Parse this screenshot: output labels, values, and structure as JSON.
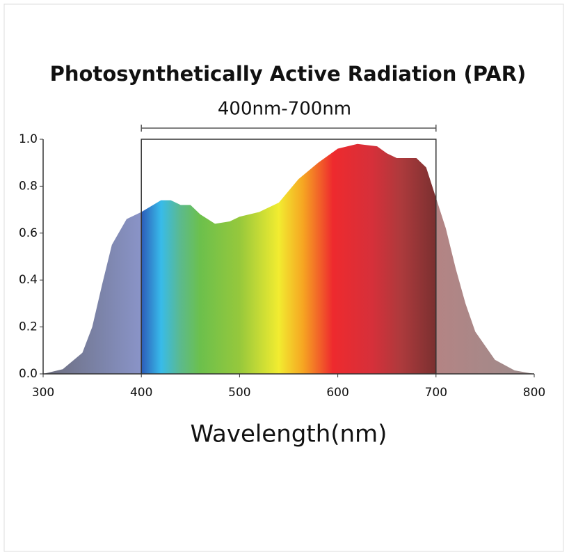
{
  "chart_data": {
    "type": "area",
    "title": "Photosynthetically Active Radiation (PAR)",
    "xlabel": "Wavelength(nm)",
    "band": {
      "label": "400nm-700nm",
      "start": 400,
      "end": 700
    },
    "x": [
      300,
      320,
      340,
      350,
      360,
      370,
      385,
      400,
      420,
      430,
      440,
      450,
      460,
      475,
      490,
      500,
      520,
      540,
      550,
      560,
      580,
      600,
      620,
      640,
      650,
      660,
      680,
      690,
      700,
      710,
      720,
      730,
      740,
      760,
      780,
      800
    ],
    "y": [
      0.0,
      0.02,
      0.09,
      0.2,
      0.38,
      0.55,
      0.66,
      0.69,
      0.74,
      0.74,
      0.72,
      0.72,
      0.68,
      0.64,
      0.65,
      0.67,
      0.69,
      0.73,
      0.78,
      0.83,
      0.9,
      0.96,
      0.98,
      0.97,
      0.94,
      0.92,
      0.92,
      0.88,
      0.75,
      0.62,
      0.45,
      0.3,
      0.18,
      0.06,
      0.015,
      0.0
    ],
    "xlim": [
      300,
      800
    ],
    "xticks": [
      300,
      400,
      500,
      600,
      700,
      800
    ],
    "ylim": [
      0,
      1
    ],
    "yticks": [
      {
        "value": 0,
        "label": "0.0"
      },
      {
        "value": 0.2,
        "label": "0.2"
      },
      {
        "value": 0.4,
        "label": "0.4"
      },
      {
        "value": 0.6,
        "label": "0.6"
      },
      {
        "value": 0.8,
        "label": "0.8"
      },
      {
        "value": 1,
        "label": "1.0"
      }
    ]
  }
}
